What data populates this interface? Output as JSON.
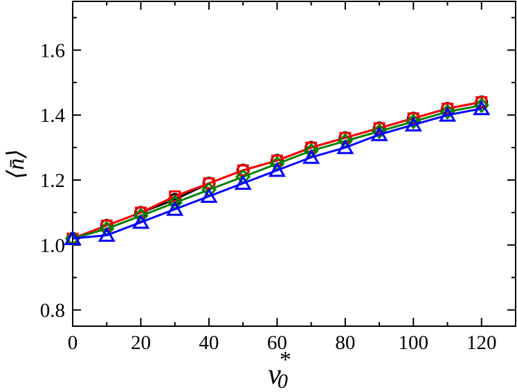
{
  "chart_data": {
    "type": "line",
    "title": "",
    "xlabel": "v",
    "xlabel_sup": "*",
    "xlabel_sub": "0",
    "ylabel": "⟨n̄⟩",
    "xlim": [
      0,
      130
    ],
    "ylim": [
      0.75,
      1.75
    ],
    "xticks": [
      0,
      20,
      40,
      60,
      80,
      100,
      120
    ],
    "xtick_labels": [
      "0",
      "20",
      "40",
      "60",
      "80",
      "100",
      "120"
    ],
    "yticks": [
      0.8,
      1.0,
      1.2,
      1.4,
      1.6
    ],
    "ytick_labels": [
      "0.8",
      "1.0",
      "1.2",
      "1.4",
      "1.6"
    ],
    "grid": false,
    "x": [
      0,
      10,
      20,
      30,
      40,
      50,
      60,
      70,
      80,
      90,
      100,
      110,
      120
    ],
    "series": [
      {
        "color": "#000000",
        "marker": "circle",
        "values": [
          1.02,
          1.06,
          1.1,
          1.14,
          1.19,
          1.23,
          1.26,
          1.3,
          1.33,
          1.36,
          1.39,
          1.42,
          1.44
        ]
      },
      {
        "color": "#ff0000",
        "marker": "square",
        "values": [
          1.02,
          1.06,
          1.1,
          1.15,
          1.19,
          1.23,
          1.26,
          1.3,
          1.33,
          1.36,
          1.39,
          1.42,
          1.44
        ]
      },
      {
        "color": "#008000",
        "marker": "diamond",
        "values": [
          1.02,
          1.05,
          1.09,
          1.13,
          1.17,
          1.21,
          1.25,
          1.29,
          1.32,
          1.35,
          1.38,
          1.41,
          1.43
        ]
      },
      {
        "color": "#0000ff",
        "marker": "triangle",
        "values": [
          1.02,
          1.03,
          1.07,
          1.11,
          1.15,
          1.19,
          1.23,
          1.27,
          1.3,
          1.34,
          1.37,
          1.4,
          1.42
        ]
      }
    ]
  }
}
